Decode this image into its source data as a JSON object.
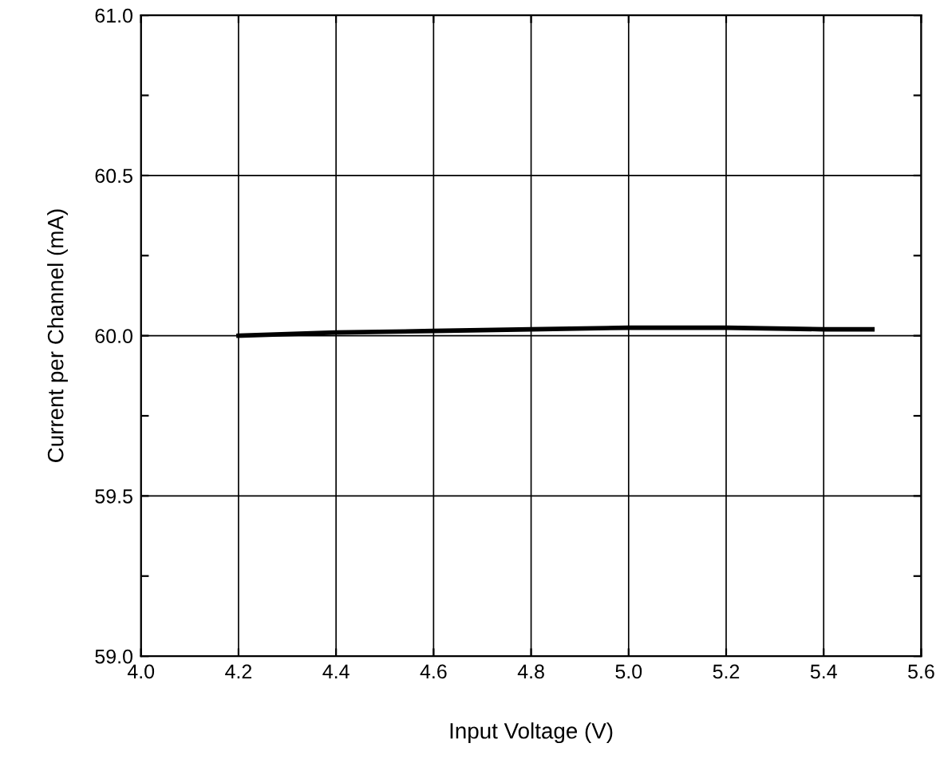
{
  "chart_data": {
    "type": "line",
    "xlabel": "Input Voltage (V)",
    "ylabel": "Current per Channel (mA)",
    "x": [
      4.2,
      4.4,
      4.6,
      4.8,
      5.0,
      5.2,
      5.4,
      5.5
    ],
    "series": [
      {
        "color": "#000000",
        "values": [
          60.0,
          60.01,
          60.015,
          60.02,
          60.025,
          60.025,
          60.02,
          60.02
        ]
      }
    ],
    "xlim": [
      4.0,
      5.6
    ],
    "ylim": [
      59.0,
      61.0
    ],
    "xticks": [
      {
        "value": 4.0,
        "label": "4.0"
      },
      4.2,
      4.4,
      4.6,
      4.8,
      {
        "value": 5.0,
        "label": "5.0"
      },
      5.2,
      5.4,
      5.6
    ],
    "yticks": [
      {
        "value": 59.0,
        "label": "59.0"
      },
      {
        "value": 59.25,
        "label": null
      },
      59.5,
      {
        "value": 59.75,
        "label": null
      },
      {
        "value": 60.0,
        "label": "60.0"
      },
      {
        "value": 60.25,
        "label": null
      },
      60.5,
      {
        "value": 60.75,
        "label": null
      },
      {
        "value": 61.0,
        "label": "61.0"
      }
    ],
    "grid": true,
    "marker": "none",
    "line_style": "solid",
    "legend": false
  }
}
